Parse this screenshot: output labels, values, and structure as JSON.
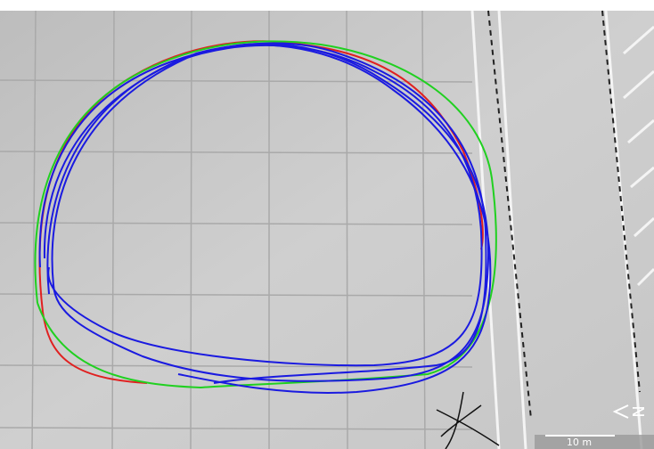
{
  "scale_bar": {
    "label": "10 m"
  },
  "compass": {
    "label": "N"
  }
}
